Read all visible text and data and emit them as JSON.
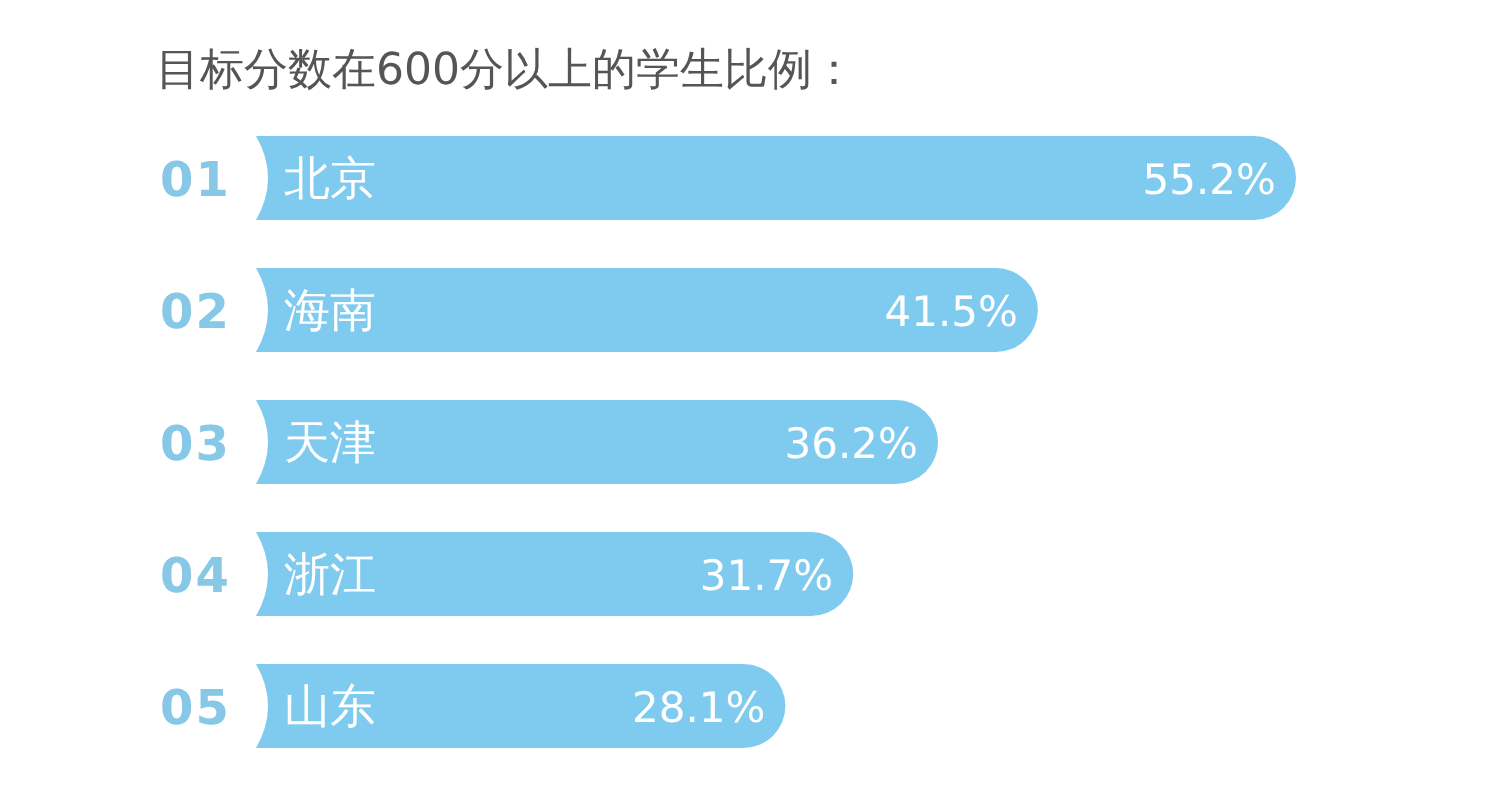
{
  "chart_data": {
    "type": "bar",
    "orientation": "horizontal",
    "title": "目标分数在600分以上的学生比例：",
    "categories": [
      "北京",
      "海南",
      "天津",
      "浙江",
      "山东"
    ],
    "values": [
      55.2,
      41.5,
      36.2,
      31.7,
      28.1
    ],
    "value_labels": [
      "55.2%",
      "41.5%",
      "36.2%",
      "31.7%",
      "28.1%"
    ],
    "color": "#7fcbf0",
    "data_labels": true,
    "annotations": [
      "01",
      "02",
      "03",
      "04",
      "05"
    ]
  }
}
